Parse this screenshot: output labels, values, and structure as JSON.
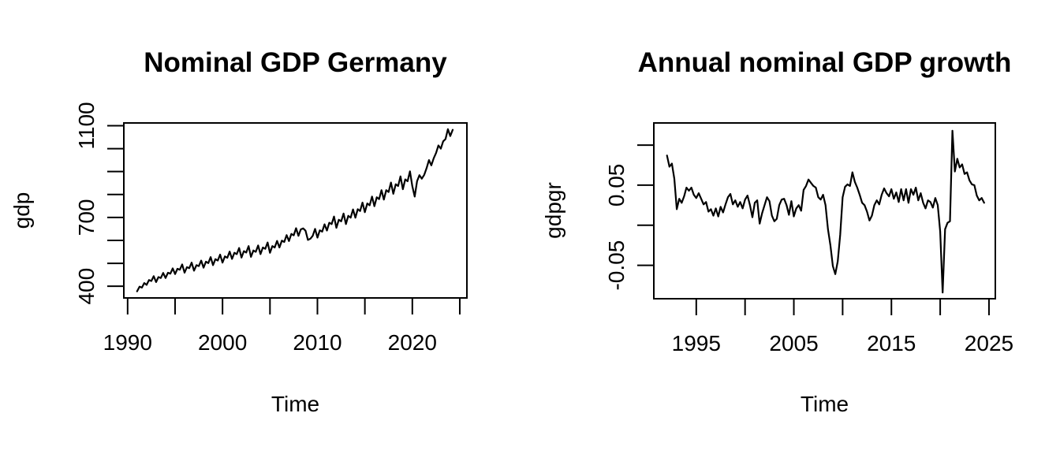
{
  "figure": {
    "background": "#ffffff",
    "foreground": "#000000"
  },
  "chart_data": [
    {
      "type": "line",
      "title": "Nominal GDP Germany",
      "xlabel": "Time",
      "ylabel": "gdp",
      "series_name": "gdp",
      "frequency": "quarterly",
      "x_start": 1991.0,
      "x_step": 0.25,
      "values": [
        378,
        398,
        394,
        414,
        406,
        427,
        423,
        444,
        418,
        440,
        436,
        458,
        436,
        459,
        455,
        478,
        453,
        476,
        472,
        495,
        459,
        483,
        479,
        503,
        468,
        492,
        488,
        512,
        481,
        507,
        501,
        527,
        492,
        518,
        512,
        538,
        503,
        530,
        524,
        551,
        519,
        546,
        540,
        567,
        525,
        553,
        547,
        575,
        528,
        556,
        550,
        578,
        540,
        569,
        563,
        591,
        546,
        575,
        569,
        598,
        569,
        599,
        593,
        623,
        597,
        628,
        622,
        653,
        620,
        648,
        652,
        642,
        602,
        607,
        620,
        650,
        612,
        644,
        638,
        670,
        643,
        677,
        671,
        704,
        655,
        690,
        683,
        717,
        671,
        707,
        699,
        735,
        699,
        736,
        728,
        765,
        723,
        761,
        753,
        791,
        749,
        788,
        780,
        819,
        778,
        819,
        811,
        852,
        803,
        845,
        837,
        879,
        823,
        866,
        858,
        901,
        836,
        791,
        858,
        884,
        869,
        886,
        915,
        950,
        927,
        958,
        981,
        1014,
        1000,
        1032,
        1042,
        1085,
        1055,
        1082
      ],
      "xlim": [
        1989.6,
        2025.75
      ],
      "ylim": [
        349,
        1112
      ],
      "xticks": [
        1990,
        1995,
        2000,
        2005,
        2010,
        2015,
        2020,
        2025
      ],
      "xtick_labels": [
        "1990",
        "",
        "2000",
        "",
        "2010",
        "",
        "2020",
        ""
      ],
      "yticks": [
        400,
        500,
        600,
        700,
        800,
        900,
        1000,
        1100
      ],
      "ytick_labels": [
        "400",
        "",
        "",
        "700",
        "",
        "",
        "",
        "1100"
      ],
      "grid": false,
      "legend": null
    },
    {
      "type": "line",
      "title": "Annual nominal GDP growth",
      "xlabel": "Time",
      "ylabel": "gdpgr",
      "series_name": "gdpgr",
      "frequency": "quarterly",
      "x_start": 1992.0,
      "x_step": 0.25,
      "values": [
        0.087,
        0.073,
        0.077,
        0.058,
        0.02,
        0.033,
        0.028,
        0.036,
        0.047,
        0.043,
        0.047,
        0.038,
        0.034,
        0.04,
        0.033,
        0.026,
        0.029,
        0.017,
        0.02,
        0.012,
        0.021,
        0.011,
        0.023,
        0.016,
        0.026,
        0.035,
        0.039,
        0.026,
        0.031,
        0.023,
        0.029,
        0.021,
        0.032,
        0.037,
        0.025,
        0.01,
        0.028,
        0.031,
        0.002,
        0.015,
        0.025,
        0.035,
        0.03,
        0.012,
        0.005,
        0.008,
        0.025,
        0.032,
        0.033,
        0.025,
        0.013,
        0.03,
        0.011,
        0.021,
        0.025,
        0.018,
        0.044,
        0.049,
        0.057,
        0.053,
        0.049,
        0.047,
        0.035,
        0.032,
        0.038,
        0.025,
        -0.005,
        -0.025,
        -0.051,
        -0.061,
        -0.045,
        -0.012,
        0.035,
        0.048,
        0.051,
        0.049,
        0.066,
        0.054,
        0.047,
        0.038,
        0.028,
        0.025,
        0.017,
        0.006,
        0.012,
        0.025,
        0.031,
        0.026,
        0.038,
        0.046,
        0.04,
        0.036,
        0.045,
        0.033,
        0.041,
        0.029,
        0.045,
        0.031,
        0.045,
        0.028,
        0.045,
        0.038,
        0.047,
        0.031,
        0.04,
        0.028,
        0.021,
        0.031,
        0.029,
        0.022,
        0.034,
        0.025,
        -0.008,
        -0.084,
        -0.005,
        0.003,
        0.005,
        0.118,
        0.067,
        0.083,
        0.072,
        0.076,
        0.064,
        0.066,
        0.056,
        0.051,
        0.05,
        0.037,
        0.031,
        0.034,
        0.028
      ],
      "xlim": [
        1990.65,
        2025.65
      ],
      "ylim": [
        -0.0917,
        0.1276
      ],
      "xticks": [
        1995,
        2000,
        2005,
        2010,
        2015,
        2020,
        2025
      ],
      "xtick_labels": [
        "1995",
        "",
        "2005",
        "",
        "2015",
        "",
        "2025"
      ],
      "yticks": [
        -0.05,
        0.0,
        0.05,
        0.1
      ],
      "ytick_labels": [
        "-0.05",
        "",
        "0.05",
        ""
      ],
      "grid": false,
      "legend": null
    }
  ]
}
